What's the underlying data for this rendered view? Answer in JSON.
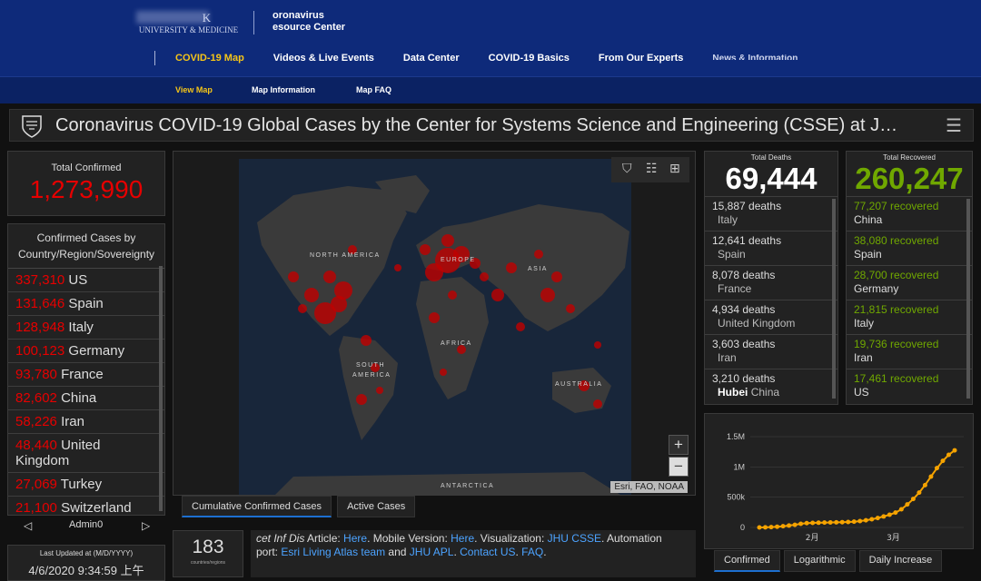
{
  "header": {
    "university_line": "UNIVERSITY & MEDICINE",
    "university_k": "K",
    "resource_line1": "oronavirus",
    "resource_line2": "esource Center",
    "nav": [
      "COVID-19 Map",
      "Videos & Live Events",
      "Data Center",
      "COVID-19 Basics",
      "From Our Experts"
    ],
    "subnav": [
      "View Map",
      "Map Information",
      "Map FAQ"
    ]
  },
  "title": "Coronavirus COVID-19 Global Cases by the Center for Systems Science and Engineering (CSSE) at J…",
  "total_confirmed": {
    "label": "Total Confirmed",
    "value": "1,273,990"
  },
  "confirmed_list": {
    "header": "Confirmed Cases by Country/Region/Sovereignty",
    "rows": [
      {
        "value": "337,310",
        "name": "US"
      },
      {
        "value": "131,646",
        "name": "Spain"
      },
      {
        "value": "128,948",
        "name": "Italy"
      },
      {
        "value": "100,123",
        "name": "Germany"
      },
      {
        "value": "93,780",
        "name": "France"
      },
      {
        "value": "82,602",
        "name": "China"
      },
      {
        "value": "58,226",
        "name": "Iran"
      },
      {
        "value": "48,440",
        "name": "United Kingdom"
      },
      {
        "value": "27,069",
        "name": "Turkey"
      },
      {
        "value": "21,100",
        "name": "Switzerland"
      }
    ]
  },
  "admin": {
    "label": "Admin0",
    "prev": "◁",
    "next": "▷"
  },
  "last_updated": {
    "label": "Last Updated at (M/D/YYYY)",
    "value": "4/6/2020 9:34:59 上午"
  },
  "map": {
    "labels": [
      "NORTH AMERICA",
      "EUROPE",
      "ASIA",
      "AFRICA",
      "SOUTH AMERICA",
      "AUSTRALIA",
      "ANTARCTICA"
    ],
    "attribution": "Esri, FAO, NOAA",
    "zoom_in": "+",
    "zoom_out": "−",
    "tabs": [
      "Cumulative Confirmed Cases",
      "Active Cases"
    ]
  },
  "countries": {
    "value": "183",
    "label": "countries/regions"
  },
  "info": {
    "t1": "cet Inf Dis",
    "t2": " Article: ",
    "here1": "Here",
    "t3": ". Mobile Version: ",
    "here2": "Here",
    "t4": ". Visualization: ",
    "jhu": "JHU CSSE",
    "t5": ". Automation",
    "t6": "port: ",
    "esri": "Esri Living Atlas team",
    "t7": " and ",
    "apl": "JHU APL",
    "t8": ". ",
    "contact": "Contact US",
    "t9": ". ",
    "faq": "FAQ",
    "t10": "."
  },
  "deaths": {
    "label": "Total Deaths",
    "value": "69,444",
    "rows": [
      {
        "value": "15,887 deaths",
        "name": "Italy"
      },
      {
        "value": "12,641 deaths",
        "name": "Spain"
      },
      {
        "value": "8,078 deaths",
        "name": "France"
      },
      {
        "value": "4,934 deaths",
        "name": "United Kingdom"
      },
      {
        "value": "3,603 deaths",
        "name": "Iran"
      },
      {
        "value": "3,210 deaths",
        "name_bold": "Hubei",
        "name": "China"
      }
    ]
  },
  "recovered": {
    "label": "Total Recovered",
    "value": "260,247",
    "rows": [
      {
        "value": "77,207 recovered",
        "name": "China"
      },
      {
        "value": "38,080 recovered",
        "name": "Spain"
      },
      {
        "value": "28,700 recovered",
        "name": "Germany"
      },
      {
        "value": "21,815 recovered",
        "name": "Italy"
      },
      {
        "value": "19,736 recovered",
        "name": "Iran"
      },
      {
        "value": "17,461 recovered",
        "name": "US"
      }
    ]
  },
  "chart_data": {
    "type": "line",
    "y_ticks": [
      "1.5M",
      "1M",
      "500k",
      "0"
    ],
    "x_ticks": [
      "2月",
      "3月"
    ],
    "ylim": [
      0,
      1500000
    ],
    "series": [
      {
        "values": [
          555,
          2000,
          6000,
          12000,
          20000,
          31000,
          43000,
          60000,
          71000,
          75000,
          78000,
          80000,
          82000,
          84000,
          87000,
          90000,
          95000,
          105000,
          118000,
          135000,
          156000,
          181000,
          210000,
          245000,
          300000,
          380000,
          470000,
          575000,
          700000,
          840000,
          980000,
          1100000,
          1200000,
          1273990
        ],
        "color": "#f5a300"
      }
    ],
    "tabs": [
      "Confirmed",
      "Logarithmic",
      "Daily Increase"
    ]
  }
}
